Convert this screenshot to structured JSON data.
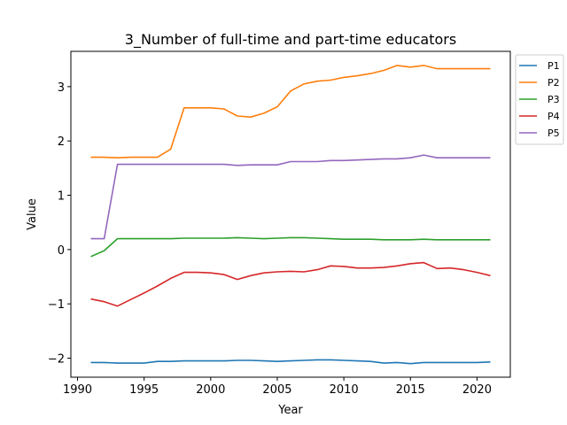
{
  "chart_data": {
    "type": "line",
    "title": "3_Number of full-time and part-time educators",
    "xlabel": "Year",
    "ylabel": "Value",
    "xlim": [
      1989.5,
      2022.5
    ],
    "ylim": [
      -2.35,
      3.65
    ],
    "xticks": [
      1990,
      1995,
      2000,
      2005,
      2010,
      2015,
      2020
    ],
    "yticks": [
      -2,
      -1,
      0,
      1,
      2,
      3
    ],
    "grid": false,
    "legend_position": "outside top-right",
    "x": [
      1991,
      1992,
      1993,
      1994,
      1995,
      1996,
      1997,
      1998,
      1999,
      2000,
      2001,
      2002,
      2003,
      2004,
      2005,
      2006,
      2007,
      2008,
      2009,
      2010,
      2011,
      2012,
      2013,
      2014,
      2015,
      2016,
      2017,
      2018,
      2019,
      2020,
      2021
    ],
    "series": [
      {
        "name": "P1",
        "color": "#1f77b4",
        "values": [
          -2.08,
          -2.08,
          -2.09,
          -2.09,
          -2.09,
          -2.06,
          -2.06,
          -2.05,
          -2.05,
          -2.05,
          -2.05,
          -2.04,
          -2.04,
          -2.05,
          -2.06,
          -2.05,
          -2.04,
          -2.03,
          -2.03,
          -2.04,
          -2.05,
          -2.06,
          -2.09,
          -2.08,
          -2.1,
          -2.08,
          -2.08,
          -2.08,
          -2.08,
          -2.08,
          -2.07
        ]
      },
      {
        "name": "P2",
        "color": "#ff7f0e",
        "values": [
          1.7,
          1.7,
          1.69,
          1.7,
          1.7,
          1.7,
          1.85,
          2.61,
          2.61,
          2.61,
          2.59,
          2.46,
          2.44,
          2.51,
          2.63,
          2.92,
          3.05,
          3.1,
          3.12,
          3.17,
          3.2,
          3.24,
          3.3,
          3.39,
          3.36,
          3.39,
          3.33,
          3.33,
          3.33,
          3.33,
          3.33
        ]
      },
      {
        "name": "P3",
        "color": "#2ca02c",
        "values": [
          -0.13,
          -0.02,
          0.2,
          0.2,
          0.2,
          0.2,
          0.2,
          0.21,
          0.21,
          0.21,
          0.21,
          0.22,
          0.21,
          0.2,
          0.21,
          0.22,
          0.22,
          0.21,
          0.2,
          0.19,
          0.19,
          0.19,
          0.18,
          0.18,
          0.18,
          0.19,
          0.18,
          0.18,
          0.18,
          0.18,
          0.18
        ]
      },
      {
        "name": "P4",
        "color": "#d62728",
        "values": [
          -0.91,
          -0.96,
          -1.04,
          -0.92,
          -0.8,
          -0.67,
          -0.53,
          -0.42,
          -0.42,
          -0.43,
          -0.46,
          -0.55,
          -0.48,
          -0.43,
          -0.41,
          -0.4,
          -0.41,
          -0.37,
          -0.3,
          -0.31,
          -0.34,
          -0.34,
          -0.33,
          -0.3,
          -0.26,
          -0.24,
          -0.35,
          -0.34,
          -0.37,
          -0.42,
          -0.48
        ]
      },
      {
        "name": "P5",
        "color": "#9467bd",
        "values": [
          0.2,
          0.2,
          1.57,
          1.57,
          1.57,
          1.57,
          1.57,
          1.57,
          1.57,
          1.57,
          1.57,
          1.55,
          1.56,
          1.56,
          1.56,
          1.62,
          1.62,
          1.62,
          1.64,
          1.64,
          1.65,
          1.66,
          1.67,
          1.67,
          1.69,
          1.74,
          1.69,
          1.69,
          1.69,
          1.69,
          1.69
        ]
      }
    ]
  }
}
